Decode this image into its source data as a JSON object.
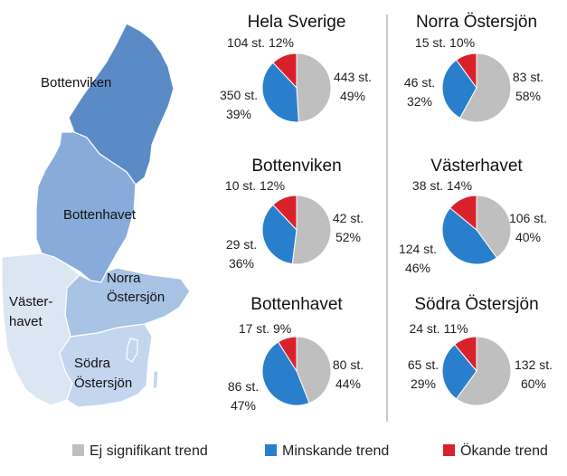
{
  "chart_data": {
    "type": "pie",
    "colors": {
      "ej_signifikant": "#bfbfbf",
      "minskande": "#2a7fcc",
      "okande": "#d9212c"
    },
    "legend": [
      {
        "key": "ej_signifikant",
        "label": "Ej signifikant trend"
      },
      {
        "key": "minskande",
        "label": "Minskande trend"
      },
      {
        "key": "okande",
        "label": "Ökande trend"
      }
    ],
    "legend_position": "bottom",
    "charts": [
      {
        "title": "Hela Sverige",
        "slices": [
          {
            "key": "ej_signifikant",
            "count": "443 st.",
            "percent": "49%",
            "value": 49
          },
          {
            "key": "minskande",
            "count": "350 st.",
            "percent": "39%",
            "value": 39
          },
          {
            "key": "okande",
            "count": "104 st.",
            "percent": "12%",
            "value": 12
          }
        ]
      },
      {
        "title": "Norra Östersjön",
        "slices": [
          {
            "key": "ej_signifikant",
            "count": "83 st.",
            "percent": "58%",
            "value": 58
          },
          {
            "key": "minskande",
            "count": "46 st.",
            "percent": "32%",
            "value": 32
          },
          {
            "key": "okande",
            "count": "15 st.",
            "percent": "10%",
            "value": 10
          }
        ]
      },
      {
        "title": "Bottenviken",
        "slices": [
          {
            "key": "ej_signifikant",
            "count": "42 st.",
            "percent": "52%",
            "value": 52
          },
          {
            "key": "minskande",
            "count": "29 st.",
            "percent": "36%",
            "value": 36
          },
          {
            "key": "okande",
            "count": "10 st.",
            "percent": "12%",
            "value": 12
          }
        ]
      },
      {
        "title": "Västerhavet",
        "slices": [
          {
            "key": "ej_signifikant",
            "count": "106 st.",
            "percent": "40%",
            "value": 40
          },
          {
            "key": "minskande",
            "count": "124 st.",
            "percent": "46%",
            "value": 46
          },
          {
            "key": "okande",
            "count": "38 st.",
            "percent": "14%",
            "value": 14
          }
        ]
      },
      {
        "title": "Bottenhavet",
        "slices": [
          {
            "key": "ej_signifikant",
            "count": "80 st.",
            "percent": "44%",
            "value": 44
          },
          {
            "key": "minskande",
            "count": "86 st.",
            "percent": "47%",
            "value": 47
          },
          {
            "key": "okande",
            "count": "17 st.",
            "percent": "9%",
            "value": 9
          }
        ]
      },
      {
        "title": "Södra Östersjön",
        "slices": [
          {
            "key": "ej_signifikant",
            "count": "132 st.",
            "percent": "60%",
            "value": 60
          },
          {
            "key": "minskande",
            "count": "65 st.",
            "percent": "29%",
            "value": 29
          },
          {
            "key": "okande",
            "count": "24 st.",
            "percent": "11%",
            "value": 11
          }
        ]
      }
    ]
  },
  "map": {
    "regions": [
      {
        "id": "bottenviken",
        "lines": [
          "Bottenviken"
        ],
        "color": "#5b8bc7"
      },
      {
        "id": "bottenhavet",
        "lines": [
          "Bottenhavet"
        ],
        "color": "#88abd9"
      },
      {
        "id": "norra",
        "lines": [
          "Norra",
          "Östersjön"
        ],
        "color": "#a9c3e5"
      },
      {
        "id": "vasterhavet",
        "lines": [
          "Väster-",
          "havet"
        ],
        "color": "#dbe6f3"
      },
      {
        "id": "sodra",
        "lines": [
          "Södra",
          "Östersjön"
        ],
        "color": "#c3d6ee"
      }
    ]
  }
}
